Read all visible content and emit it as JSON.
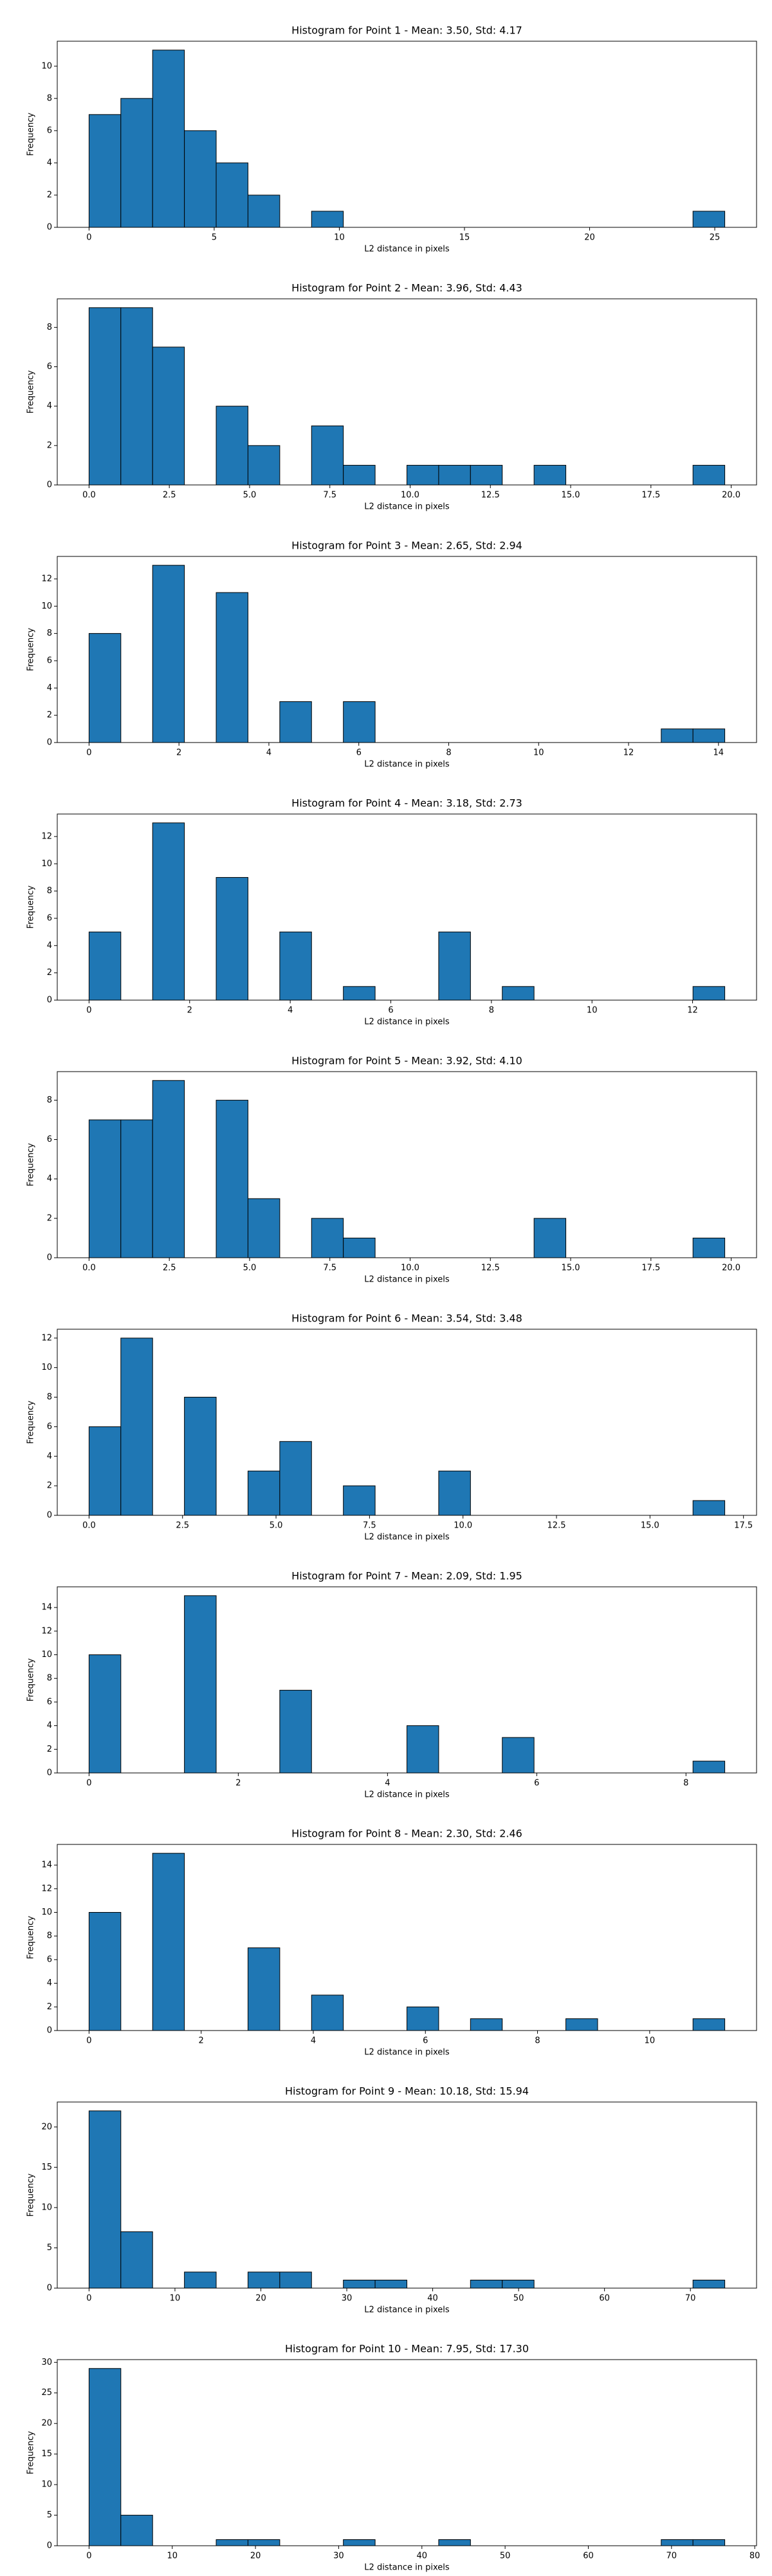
{
  "chart_data": [
    {
      "type": "histogram",
      "title": "Histogram for Point 1 - Mean: 3.50, Std: 4.17",
      "xlabel": "L2 distance in pixels",
      "ylabel": "Frequency",
      "color": "#1f77b4",
      "edgecolor": "#000000",
      "bins": [
        0,
        1.27,
        2.54,
        3.81,
        5.08,
        6.35,
        7.62,
        8.89,
        10.16,
        11.43,
        12.7,
        13.97,
        15.24,
        16.51,
        17.78,
        19.05,
        20.32,
        21.59,
        22.86,
        24.13,
        25.4
      ],
      "values": [
        7,
        8,
        11,
        6,
        4,
        2,
        0,
        1,
        0,
        0,
        0,
        0,
        0,
        0,
        0,
        0,
        0,
        0,
        0,
        1
      ],
      "xlim": [
        -1.27,
        26.67
      ],
      "xticks": [
        0,
        5,
        10,
        15,
        20,
        25
      ],
      "ylim": [
        0,
        11.55
      ],
      "yticks": [
        0,
        2,
        4,
        6,
        8,
        10
      ]
    },
    {
      "type": "histogram",
      "title": "Histogram for Point 2 - Mean: 3.96, Std: 4.43",
      "xlabel": "L2 distance in pixels",
      "ylabel": "Frequency",
      "color": "#1f77b4",
      "edgecolor": "#000000",
      "bins": [
        0,
        0.99,
        1.98,
        2.97,
        3.96,
        4.95,
        5.94,
        6.93,
        7.92,
        8.91,
        9.9,
        10.89,
        11.88,
        12.87,
        13.86,
        14.85,
        15.84,
        16.83,
        17.82,
        18.81,
        19.8
      ],
      "values": [
        9,
        9,
        7,
        0,
        4,
        2,
        0,
        3,
        1,
        0,
        1,
        1,
        1,
        0,
        1,
        0,
        0,
        0,
        0,
        1
      ],
      "xlim": [
        -0.99,
        20.79
      ],
      "xticks": [
        {
          "value": 0,
          "label": "0.0"
        },
        2.5,
        {
          "value": 5,
          "label": "5.0"
        },
        7.5,
        {
          "value": 10,
          "label": "10.0"
        },
        12.5,
        {
          "value": 15,
          "label": "15.0"
        },
        17.5,
        {
          "value": 20,
          "label": "20.0"
        }
      ],
      "ylim": [
        0,
        9.45
      ],
      "yticks": [
        0,
        2,
        4,
        6,
        8
      ]
    },
    {
      "type": "histogram",
      "title": "Histogram for Point 3 - Mean: 2.65, Std: 2.94",
      "xlabel": "L2 distance in pixels",
      "ylabel": "Frequency",
      "color": "#1f77b4",
      "edgecolor": "#000000",
      "bins": [
        0,
        0.707,
        1.414,
        2.121,
        2.828,
        3.535,
        4.242,
        4.949,
        5.656,
        6.363,
        7.07,
        7.777,
        8.484,
        9.191,
        9.898,
        10.605,
        11.312,
        12.019,
        12.726,
        13.433,
        14.14
      ],
      "values": [
        8,
        0,
        13,
        0,
        11,
        0,
        3,
        0,
        3,
        0,
        0,
        0,
        0,
        0,
        0,
        0,
        0,
        0,
        1,
        1
      ],
      "xlim": [
        -0.707,
        14.847
      ],
      "xticks": [
        0,
        2,
        4,
        6,
        8,
        10,
        12,
        14
      ],
      "ylim": [
        0,
        13.65
      ],
      "yticks": [
        0,
        2,
        4,
        6,
        8,
        10,
        12
      ]
    },
    {
      "type": "histogram",
      "title": "Histogram for Point 4 - Mean: 3.18, Std: 2.73",
      "xlabel": "L2 distance in pixels",
      "ylabel": "Frequency",
      "color": "#1f77b4",
      "edgecolor": "#000000",
      "bins": [
        0,
        0.632,
        1.264,
        1.896,
        2.528,
        3.16,
        3.792,
        4.424,
        5.056,
        5.688,
        6.32,
        6.952,
        7.584,
        8.216,
        8.848,
        9.48,
        10.112,
        10.744,
        11.376,
        12.008,
        12.64
      ],
      "values": [
        5,
        0,
        13,
        0,
        9,
        0,
        5,
        0,
        1,
        0,
        0,
        5,
        0,
        1,
        0,
        0,
        0,
        0,
        0,
        1
      ],
      "xlim": [
        -0.632,
        13.272
      ],
      "xticks": [
        0,
        2,
        4,
        6,
        8,
        10,
        12
      ],
      "ylim": [
        0,
        13.65
      ],
      "yticks": [
        0,
        2,
        4,
        6,
        8,
        10,
        12
      ]
    },
    {
      "type": "histogram",
      "title": "Histogram for Point 5 - Mean: 3.92, Std: 4.10",
      "xlabel": "L2 distance in pixels",
      "ylabel": "Frequency",
      "color": "#1f77b4",
      "edgecolor": "#000000",
      "bins": [
        0,
        0.99,
        1.98,
        2.97,
        3.96,
        4.95,
        5.94,
        6.93,
        7.92,
        8.91,
        9.9,
        10.89,
        11.88,
        12.87,
        13.86,
        14.85,
        15.84,
        16.83,
        17.82,
        18.81,
        19.8
      ],
      "values": [
        7,
        7,
        9,
        0,
        8,
        3,
        0,
        2,
        1,
        0,
        0,
        0,
        0,
        0,
        2,
        0,
        0,
        0,
        0,
        1
      ],
      "xlim": [
        -0.99,
        20.79
      ],
      "xticks": [
        {
          "value": 0,
          "label": "0.0"
        },
        2.5,
        {
          "value": 5,
          "label": "5.0"
        },
        7.5,
        {
          "value": 10,
          "label": "10.0"
        },
        12.5,
        {
          "value": 15,
          "label": "15.0"
        },
        17.5,
        {
          "value": 20,
          "label": "20.0"
        }
      ],
      "ylim": [
        0,
        9.45
      ],
      "yticks": [
        0,
        2,
        4,
        6,
        8
      ]
    },
    {
      "type": "histogram",
      "title": "Histogram for Point 6 - Mean: 3.54, Std: 3.48",
      "xlabel": "L2 distance in pixels",
      "ylabel": "Frequency",
      "color": "#1f77b4",
      "edgecolor": "#000000",
      "bins": [
        0,
        0.85,
        1.7,
        2.55,
        3.4,
        4.25,
        5.1,
        5.95,
        6.8,
        7.65,
        8.5,
        9.35,
        10.2,
        11.05,
        11.9,
        12.75,
        13.6,
        14.45,
        15.3,
        16.15,
        17
      ],
      "values": [
        6,
        12,
        0,
        8,
        0,
        3,
        5,
        0,
        2,
        0,
        0,
        3,
        0,
        0,
        0,
        0,
        0,
        0,
        0,
        1
      ],
      "xlim": [
        -0.85,
        17.85
      ],
      "xticks": [
        {
          "value": 0,
          "label": "0.0"
        },
        2.5,
        {
          "value": 5,
          "label": "5.0"
        },
        7.5,
        {
          "value": 10,
          "label": "10.0"
        },
        12.5,
        {
          "value": 15,
          "label": "15.0"
        },
        17.5
      ],
      "ylim": [
        0,
        12.6
      ],
      "yticks": [
        0,
        2,
        4,
        6,
        8,
        10,
        12
      ]
    },
    {
      "type": "histogram",
      "title": "Histogram for Point 7 - Mean: 2.09, Std: 1.95",
      "xlabel": "L2 distance in pixels",
      "ylabel": "Frequency",
      "color": "#1f77b4",
      "edgecolor": "#000000",
      "bins": [
        0,
        0.426,
        0.852,
        1.278,
        1.704,
        2.13,
        2.556,
        2.982,
        3.408,
        3.834,
        4.26,
        4.686,
        5.112,
        5.538,
        5.964,
        6.39,
        6.816,
        7.242,
        7.668,
        8.094,
        8.52
      ],
      "values": [
        10,
        0,
        0,
        15,
        0,
        0,
        7,
        0,
        0,
        0,
        4,
        0,
        0,
        3,
        0,
        0,
        0,
        0,
        0,
        1
      ],
      "xlim": [
        -0.426,
        8.946
      ],
      "xticks": [
        0,
        2,
        4,
        6,
        8
      ],
      "ylim": [
        0,
        15.75
      ],
      "yticks": [
        0,
        2,
        4,
        6,
        8,
        10,
        12,
        14
      ]
    },
    {
      "type": "histogram",
      "title": "Histogram for Point 8 - Mean: 2.30, Std: 2.46",
      "xlabel": "L2 distance in pixels",
      "ylabel": "Frequency",
      "color": "#1f77b4",
      "edgecolor": "#000000",
      "bins": [
        0,
        0.567,
        1.134,
        1.701,
        2.268,
        2.835,
        3.402,
        3.969,
        4.536,
        5.103,
        5.67,
        6.237,
        6.804,
        7.371,
        7.938,
        8.505,
        9.072,
        9.639,
        10.206,
        10.773,
        11.34
      ],
      "values": [
        10,
        0,
        15,
        0,
        0,
        7,
        0,
        3,
        0,
        0,
        2,
        0,
        1,
        0,
        0,
        1,
        0,
        0,
        0,
        1
      ],
      "xlim": [
        -0.567,
        11.907
      ],
      "xticks": [
        0,
        2,
        4,
        6,
        8,
        10
      ],
      "ylim": [
        0,
        15.75
      ],
      "yticks": [
        0,
        2,
        4,
        6,
        8,
        10,
        12,
        14
      ]
    },
    {
      "type": "histogram",
      "title": "Histogram for Point 9 - Mean: 10.18, Std: 15.94",
      "xlabel": "L2 distance in pixels",
      "ylabel": "Frequency",
      "color": "#1f77b4",
      "edgecolor": "#000000",
      "bins": [
        0,
        3.7,
        7.4,
        11.1,
        14.8,
        18.5,
        22.2,
        25.9,
        29.6,
        33.3,
        37,
        40.7,
        44.4,
        48.1,
        51.8,
        55.5,
        59.2,
        62.9,
        66.6,
        70.3,
        74
      ],
      "values": [
        22,
        7,
        0,
        2,
        0,
        2,
        2,
        0,
        1,
        1,
        0,
        0,
        1,
        1,
        0,
        0,
        0,
        0,
        0,
        1
      ],
      "xlim": [
        -3.7,
        77.7
      ],
      "xticks": [
        0,
        10,
        20,
        30,
        40,
        50,
        60,
        70
      ],
      "ylim": [
        0,
        23.1
      ],
      "yticks": [
        0,
        5,
        10,
        15,
        20
      ]
    },
    {
      "type": "histogram",
      "title": "Histogram for Point 10 - Mean: 7.95, Std: 17.30",
      "xlabel": "L2 distance in pixels",
      "ylabel": "Frequency",
      "color": "#1f77b4",
      "edgecolor": "#000000",
      "bins": [
        0,
        3.82,
        7.64,
        11.46,
        15.28,
        19.1,
        22.92,
        26.74,
        30.56,
        34.38,
        38.2,
        42.02,
        45.84,
        49.66,
        53.48,
        57.3,
        61.12,
        64.94,
        68.76,
        72.58,
        76.4
      ],
      "values": [
        29,
        5,
        0,
        0,
        1,
        1,
        0,
        0,
        1,
        0,
        0,
        1,
        0,
        0,
        0,
        0,
        0,
        0,
        1,
        1
      ],
      "xlim": [
        -3.82,
        80.22
      ],
      "xticks": [
        0,
        10,
        20,
        30,
        40,
        50,
        60,
        70,
        80
      ],
      "ylim": [
        0,
        30.45
      ],
      "yticks": [
        0,
        5,
        10,
        15,
        20,
        25,
        30
      ]
    }
  ]
}
